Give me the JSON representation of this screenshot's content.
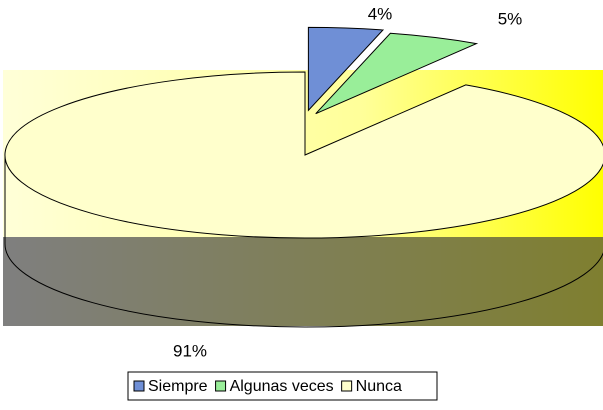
{
  "chart_data": {
    "type": "pie",
    "categories": [
      "Siempre",
      "Algunas veces",
      "Nunca"
    ],
    "values": [
      4,
      5,
      91
    ],
    "value_labels": [
      "4%",
      "5%",
      "91%"
    ],
    "colors": [
      "#6f8fd6",
      "#99ee99",
      "#ffffcc"
    ],
    "legend": "bottom"
  }
}
